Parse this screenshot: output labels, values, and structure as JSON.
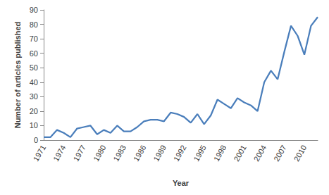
{
  "chart_data": {
    "type": "line",
    "x_label": "Year",
    "y_label": "Number of articles published",
    "categories": [
      "1971",
      null,
      null,
      "1974",
      null,
      null,
      "1977",
      null,
      null,
      "1980",
      null,
      null,
      "1983",
      null,
      null,
      "1986",
      null,
      null,
      "1989",
      null,
      null,
      "1992",
      null,
      null,
      "1995",
      null,
      null,
      "1998",
      null,
      null,
      "2001",
      null,
      null,
      "2004",
      null,
      null,
      "2007",
      null,
      null,
      "2010",
      null,
      null
    ],
    "values": [
      2,
      2,
      7,
      5,
      2,
      8,
      9,
      10,
      4,
      7,
      5,
      10,
      6,
      6,
      9,
      13,
      14,
      14,
      13,
      19,
      18,
      16,
      12,
      18,
      11,
      17,
      28,
      25,
      22,
      29,
      26,
      24,
      20,
      40,
      48,
      42,
      61,
      79,
      72,
      59,
      79,
      85
    ],
    "color": "#4a7ebb",
    "ylim": [
      0,
      90
    ],
    "yticks": [
      0,
      10,
      20,
      30,
      40,
      50,
      60,
      70,
      80,
      90
    ],
    "grid": false
  }
}
